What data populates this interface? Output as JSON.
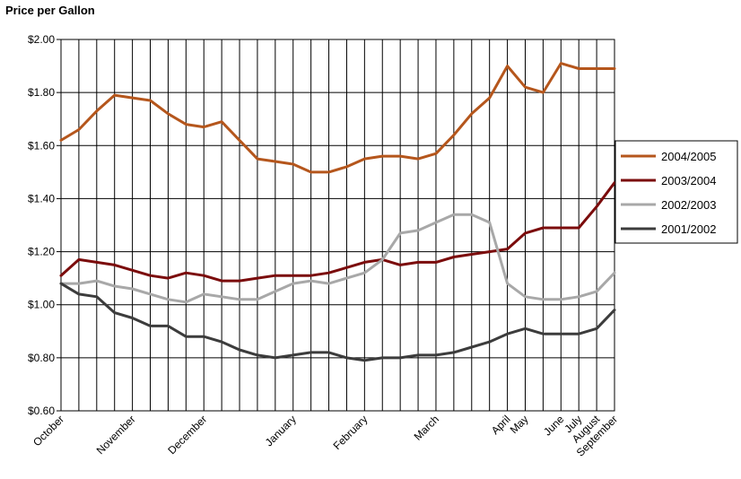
{
  "chart_data": {
    "type": "line",
    "title": "Price per Gallon",
    "xlabel": "",
    "ylabel": "",
    "ylim": [
      0.6,
      2.0
    ],
    "y_ticks": [
      "$2.00",
      "$1.80",
      "$1.60",
      "$1.40",
      "$1.20",
      "$1.00",
      "$0.80",
      "$0.60"
    ],
    "y_tick_values": [
      2.0,
      1.8,
      1.6,
      1.4,
      1.2,
      1.0,
      0.8,
      0.6
    ],
    "x_count": 32,
    "x_labels": [
      {
        "index": 0,
        "label": "October"
      },
      {
        "index": 4,
        "label": "November"
      },
      {
        "index": 8,
        "label": "December"
      },
      {
        "index": 13,
        "label": "January"
      },
      {
        "index": 17,
        "label": "February"
      },
      {
        "index": 21,
        "label": "March"
      },
      {
        "index": 25,
        "label": "April"
      },
      {
        "index": 26,
        "label": "May"
      },
      {
        "index": 28,
        "label": "June"
      },
      {
        "index": 29,
        "label": "July"
      },
      {
        "index": 30,
        "label": "August"
      },
      {
        "index": 31,
        "label": "September"
      }
    ],
    "grid": true,
    "legend_position": "right",
    "series": [
      {
        "name": "2004/2005",
        "color": "#b5561c",
        "values": [
          1.62,
          1.66,
          1.73,
          1.79,
          1.78,
          1.77,
          1.72,
          1.68,
          1.67,
          1.69,
          1.62,
          1.55,
          1.54,
          1.53,
          1.5,
          1.5,
          1.52,
          1.55,
          1.56,
          1.56,
          1.55,
          1.57,
          1.64,
          1.72,
          1.78,
          1.9,
          1.82,
          1.8,
          1.91,
          1.89,
          1.89,
          1.89
        ]
      },
      {
        "name": "2003/2004",
        "color": "#7b0c0c",
        "values": [
          1.11,
          1.17,
          1.16,
          1.15,
          1.13,
          1.11,
          1.1,
          1.12,
          1.11,
          1.09,
          1.09,
          1.1,
          1.11,
          1.11,
          1.11,
          1.12,
          1.14,
          1.16,
          1.17,
          1.15,
          1.16,
          1.16,
          1.18,
          1.19,
          1.2,
          1.21,
          1.27,
          1.29,
          1.29,
          1.29,
          1.37,
          1.46
        ]
      },
      {
        "name": "2002/2003",
        "color": "#a8a8a8",
        "values": [
          1.08,
          1.08,
          1.09,
          1.07,
          1.06,
          1.04,
          1.02,
          1.01,
          1.04,
          1.03,
          1.02,
          1.02,
          1.05,
          1.08,
          1.09,
          1.08,
          1.1,
          1.12,
          1.17,
          1.27,
          1.28,
          1.31,
          1.34,
          1.34,
          1.31,
          1.08,
          1.03,
          1.02,
          1.02,
          1.03,
          1.05,
          1.12
        ]
      },
      {
        "name": "2001/2002",
        "color": "#3c3c3c",
        "values": [
          1.08,
          1.04,
          1.03,
          0.97,
          0.95,
          0.92,
          0.92,
          0.88,
          0.88,
          0.86,
          0.83,
          0.81,
          0.8,
          0.81,
          0.82,
          0.82,
          0.8,
          0.79,
          0.8,
          0.8,
          0.81,
          0.81,
          0.82,
          0.84,
          0.86,
          0.89,
          0.91,
          0.89,
          0.89,
          0.89,
          0.91,
          0.98
        ]
      }
    ]
  }
}
